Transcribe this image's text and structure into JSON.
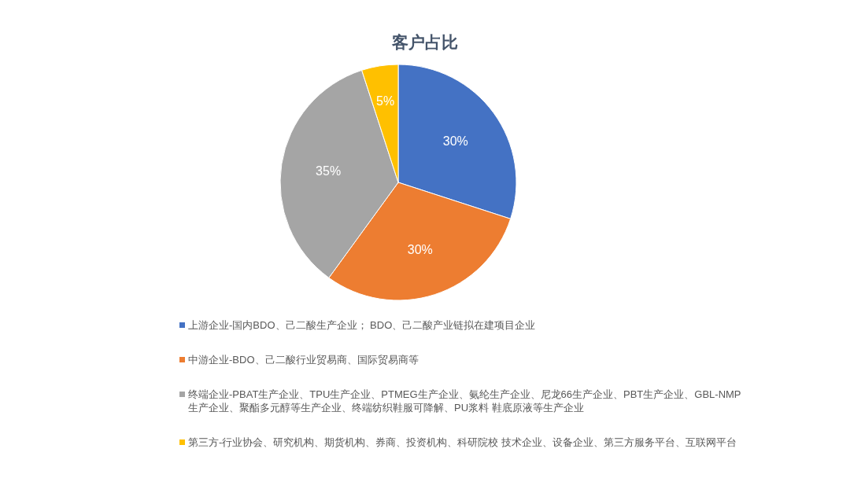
{
  "chart_data": {
    "type": "pie",
    "title": "客户占比",
    "categories": [
      "上游企业-国内BDO、己二酸生产企业； BDO、己二酸产业链拟在建项目企业",
      "中游企业-BDO、己二酸行业贸易商、国际贸易商等",
      "终端企业-PBAT生产企业、TPU生产企业、PTMEG生产企业、氨纶生产企业、尼龙66生产企业、PBT生产企业、GBL-NMP生产企业、聚酯多元醇等生产企业、终端纺织鞋服可降解、PU浆料 鞋底原液等生产企业",
      "第三方-行业协会、研究机构、期货机构、券商、投资机构、科研院校 技术企业、设备企业、第三方服务平台、互联网平台"
    ],
    "values": [
      30,
      30,
      35,
      5
    ],
    "value_labels": [
      "30%",
      "30%",
      "35%",
      "5%"
    ],
    "colors": [
      "#4472c4",
      "#ed7d31",
      "#a5a5a5",
      "#ffc000"
    ],
    "legend": "bottom"
  }
}
